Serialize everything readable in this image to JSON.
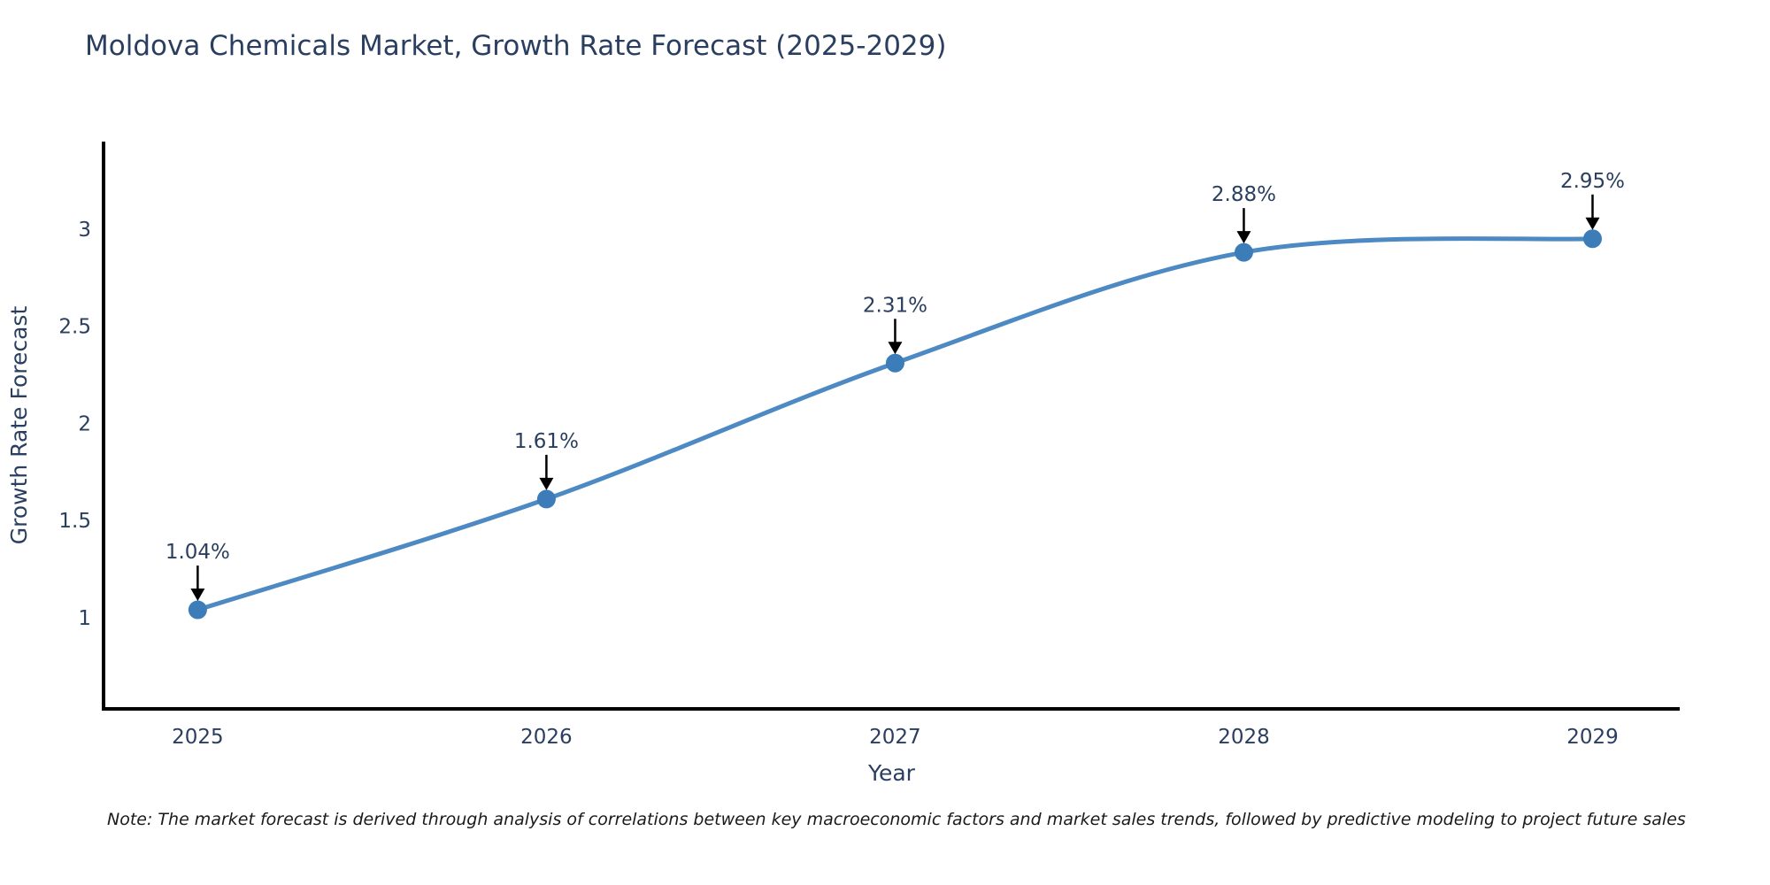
{
  "chart_data": {
    "type": "line",
    "title": "Moldova Chemicals Market, Growth Rate Forecast (2025-2029)",
    "x": [
      2025,
      2026,
      2027,
      2028,
      2029
    ],
    "series": [
      {
        "name": "Growth Rate Forecast",
        "values": [
          1.04,
          1.61,
          2.31,
          2.88,
          2.95
        ]
      }
    ],
    "point_labels": [
      "1.04%",
      "1.61%",
      "2.31%",
      "2.88%",
      "2.95%"
    ],
    "xlabel": "Year",
    "ylabel": "Growth Rate Forecast",
    "xticks": [
      "2025",
      "2026",
      "2027",
      "2028",
      "2029"
    ],
    "yticks": [
      "1",
      "1.5",
      "2",
      "2.5",
      "3"
    ],
    "ytick_values": [
      1,
      1.5,
      2,
      2.5,
      3
    ],
    "xlim": [
      2024.73,
      2029.25
    ],
    "ylim": [
      0.53,
      3.45
    ],
    "grid": false,
    "legend": "none",
    "line_shape": "spline",
    "line_color": "#4d89c2",
    "marker_color": "#3c7cb8",
    "arrow_color": "#000000"
  },
  "footnote": "Note: The market forecast is derived through analysis of correlations between key macroeconomic factors and market sales trends, followed by predictive modeling to project future sales",
  "colors": {
    "text": "#2a3f5f",
    "axis_line": "#000000",
    "background": "#ffffff"
  }
}
